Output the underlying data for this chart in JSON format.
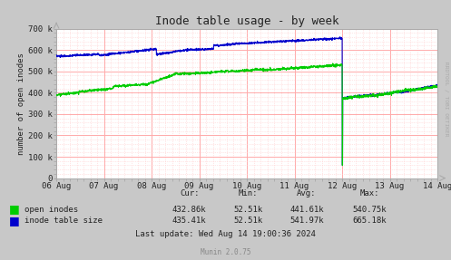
{
  "title": "Inode table usage - by week",
  "ylabel": "number of open inodes",
  "background_color": "#c8c8c8",
  "plot_bg_color": "#ffffff",
  "ylim": [
    0,
    700000
  ],
  "yticks": [
    0,
    100000,
    200000,
    300000,
    400000,
    500000,
    600000,
    700000
  ],
  "ytick_labels": [
    "0",
    "100 k",
    "200 k",
    "300 k",
    "400 k",
    "500 k",
    "600 k",
    "700 k"
  ],
  "xtick_labels": [
    "06 Aug",
    "07 Aug",
    "08 Aug",
    "09 Aug",
    "10 Aug",
    "11 Aug",
    "12 Aug",
    "13 Aug",
    "14 Aug"
  ],
  "legend_entries": [
    "open inodes",
    "inode table size"
  ],
  "open_inodes_color": "#00cc00",
  "inode_table_color": "#0000cc",
  "stats_header": [
    "Cur:",
    "Min:",
    "Avg:",
    "Max:"
  ],
  "stats_open_inodes": [
    "432.86k",
    "52.51k",
    "441.61k",
    "540.75k"
  ],
  "stats_inode_table": [
    "435.41k",
    "52.51k",
    "541.97k",
    "665.18k"
  ],
  "last_update": "Last update: Wed Aug 14 19:00:36 2024",
  "munin_version": "Munin 2.0.75",
  "right_label": "RRDTOOL / TOBI OETIKER",
  "major_grid_color": "#ffaaaa",
  "minor_grid_color": "#ffcccc",
  "axis_color": "#aaaaaa"
}
